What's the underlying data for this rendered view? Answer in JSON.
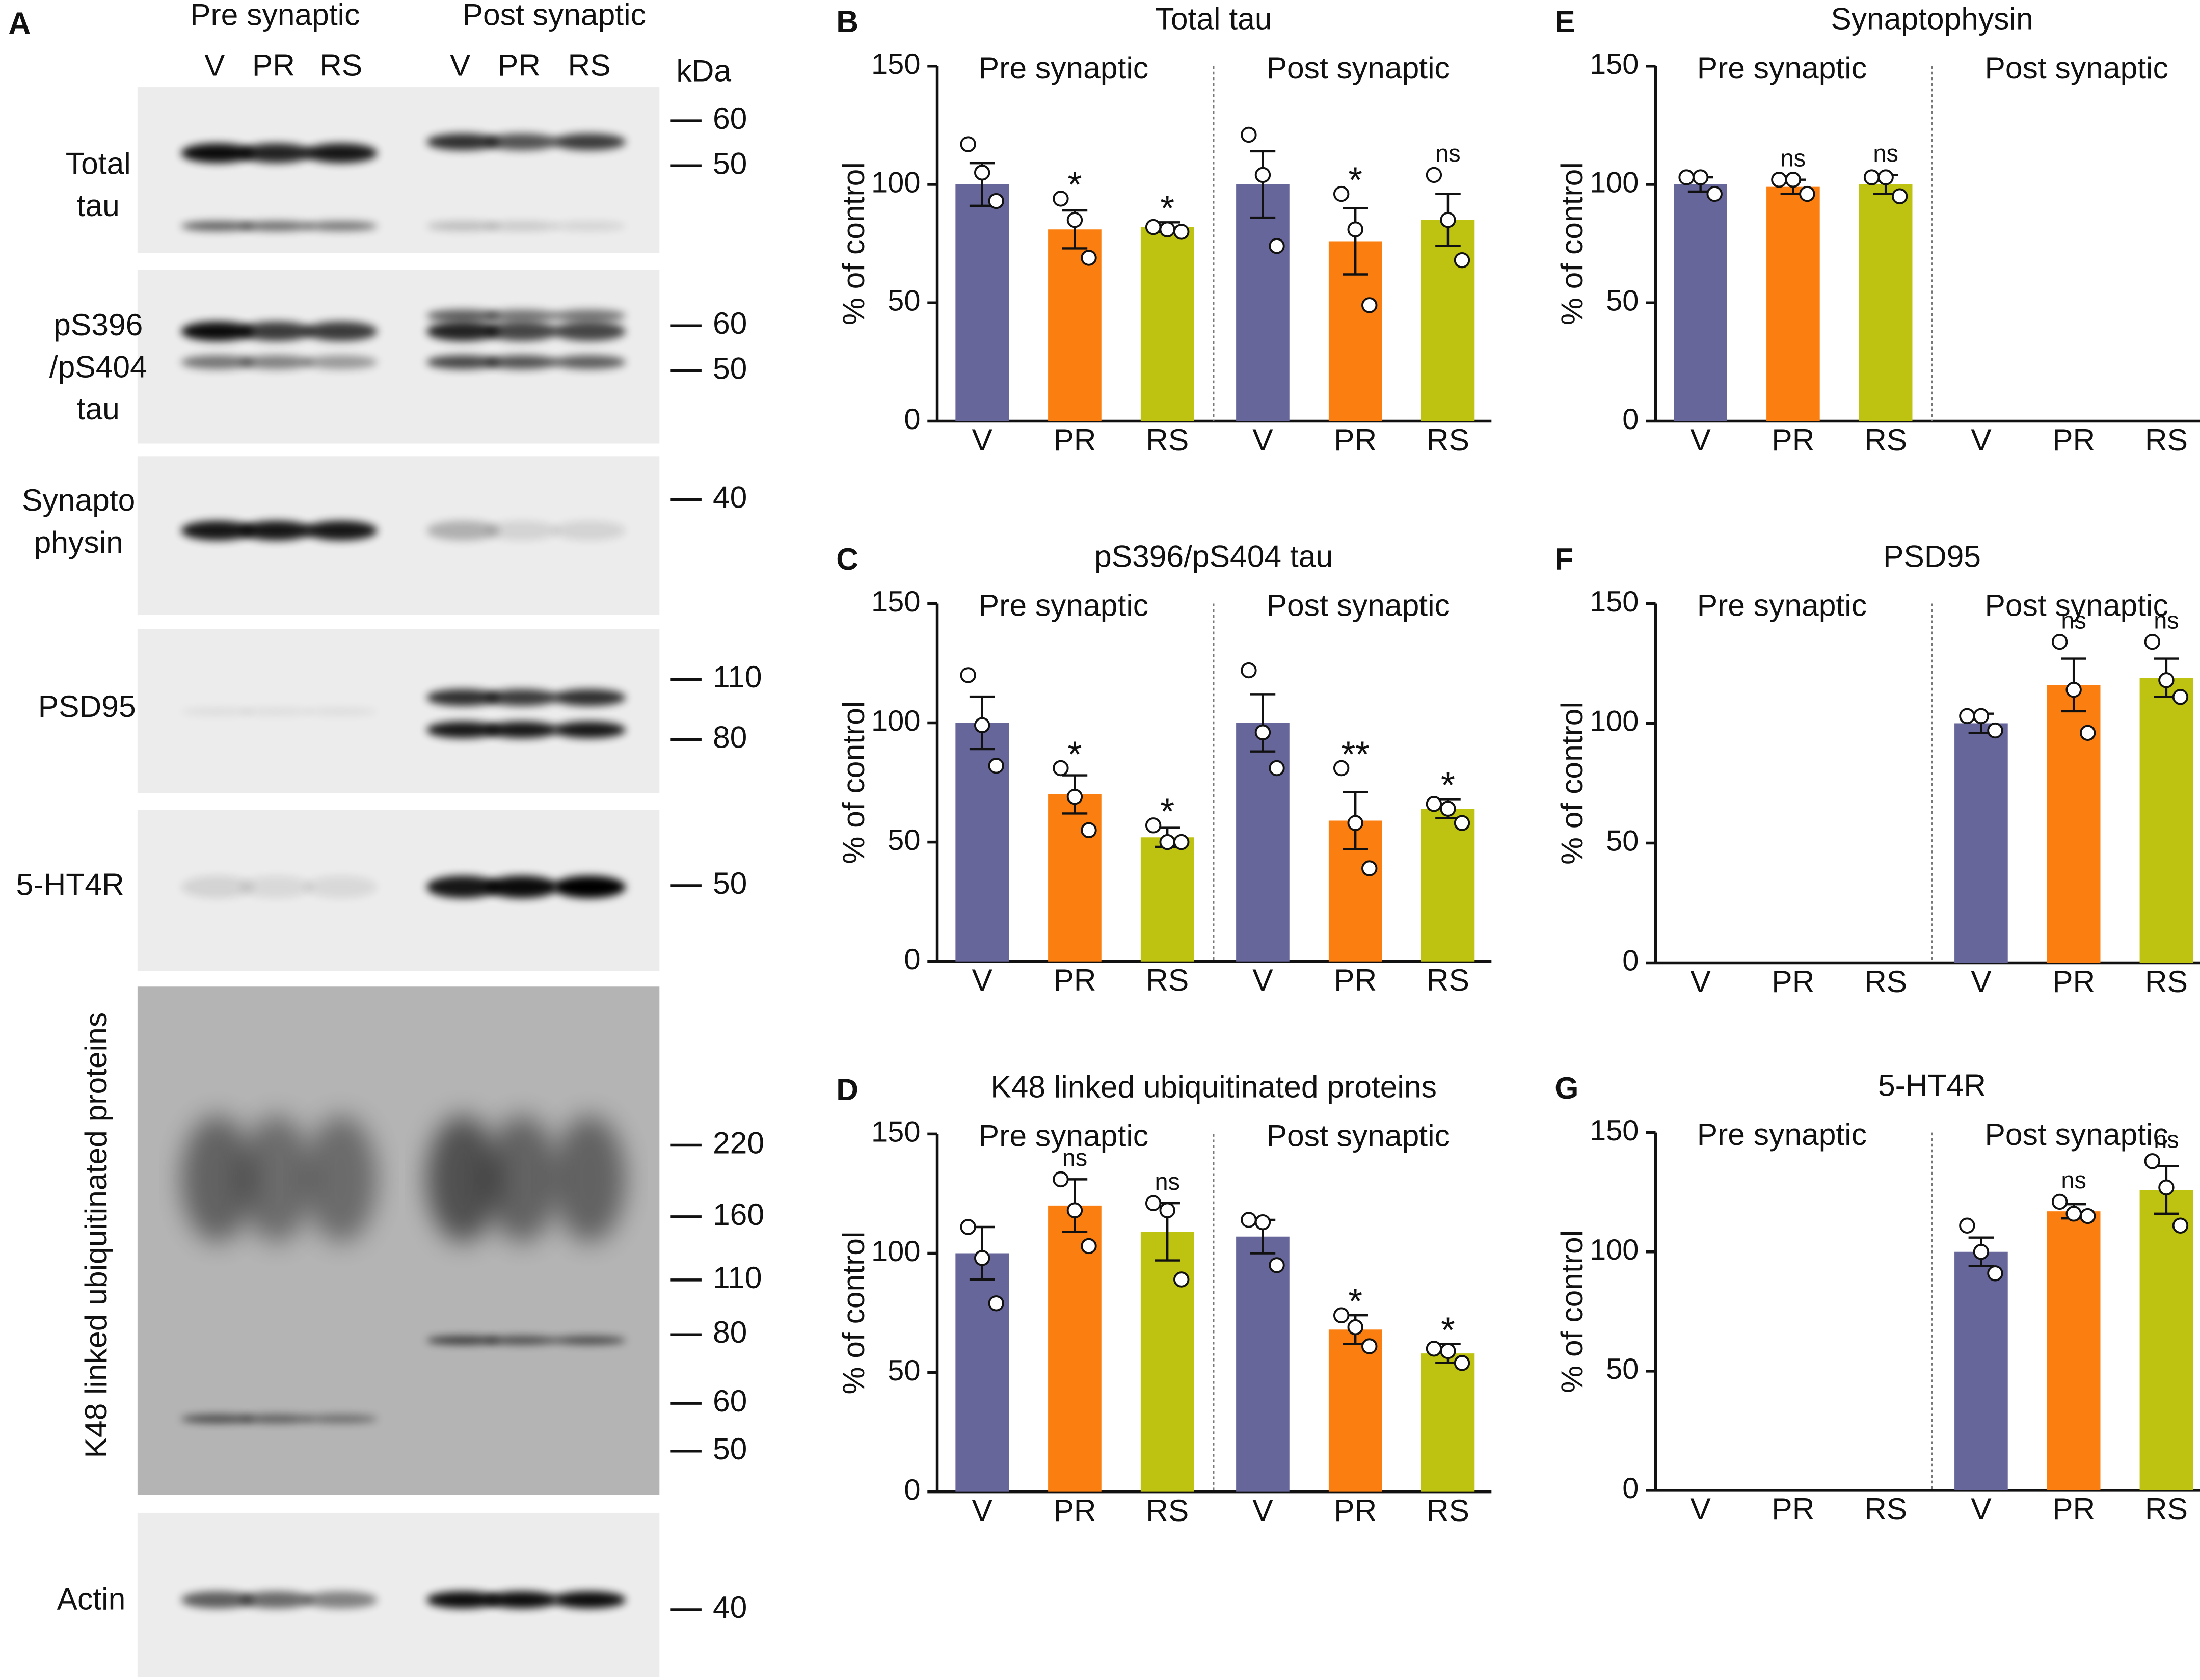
{
  "blot": {
    "panel": "A",
    "groups": [
      "Pre synaptic",
      "Post synaptic"
    ],
    "lanes": [
      "V",
      "PR",
      "RS",
      "V",
      "PR",
      "RS"
    ],
    "unit": "kDa",
    "rows": [
      {
        "label": [
          "Total",
          "tau"
        ],
        "markers": [
          60,
          50
        ]
      },
      {
        "label": [
          "pS396",
          "/pS404",
          "tau"
        ],
        "markers": [
          60,
          50
        ]
      },
      {
        "label": [
          "Synapto",
          "physin"
        ],
        "markers": [
          40
        ]
      },
      {
        "label": [
          "PSD95"
        ],
        "markers": [
          110,
          80
        ]
      },
      {
        "label": [
          "5-HT4R"
        ],
        "markers": [
          50
        ]
      },
      {
        "label": [
          "K48 linked ubiquitinated proteins"
        ],
        "markers": [
          220,
          160,
          110,
          80,
          60,
          50
        ]
      },
      {
        "label": [
          "Actin"
        ],
        "markers": [
          40
        ]
      }
    ]
  },
  "chart_data": [
    {
      "type": "bar",
      "panel": "B",
      "title": "Total tau",
      "ylabel": "% of control",
      "groups": [
        "Pre synaptic",
        "Post synaptic"
      ],
      "categories": [
        "V",
        "PR",
        "RS",
        "V",
        "PR",
        "RS"
      ],
      "colors": [
        "#67669b",
        "#fb7f10",
        "#bec211"
      ],
      "values": [
        100,
        81,
        82,
        100,
        76,
        85
      ],
      "errors": [
        9,
        8,
        2,
        14,
        14,
        11
      ],
      "points": [
        [
          117,
          105,
          93
        ],
        [
          94,
          85,
          69
        ],
        [
          82,
          81,
          80
        ],
        [
          121,
          104,
          74
        ],
        [
          96,
          81,
          49
        ],
        [
          104,
          85,
          68
        ]
      ],
      "annotations": [
        null,
        "*",
        "*",
        null,
        "*",
        "ns"
      ],
      "ylim": [
        0,
        150
      ],
      "yticks": [
        0,
        50,
        100,
        150
      ]
    },
    {
      "type": "bar",
      "panel": "C",
      "title": "pS396/pS404 tau",
      "ylabel": "% of control",
      "groups": [
        "Pre synaptic",
        "Post synaptic"
      ],
      "categories": [
        "V",
        "PR",
        "RS",
        "V",
        "PR",
        "RS"
      ],
      "colors": [
        "#67669b",
        "#fb7f10",
        "#bec211"
      ],
      "values": [
        100,
        70,
        52,
        100,
        59,
        64
      ],
      "errors": [
        11,
        8,
        4,
        12,
        12,
        4
      ],
      "points": [
        [
          120,
          99,
          82
        ],
        [
          81,
          69,
          55
        ],
        [
          57,
          50,
          50
        ],
        [
          122,
          96,
          81
        ],
        [
          81,
          58,
          39
        ],
        [
          66,
          64,
          58
        ]
      ],
      "annotations": [
        null,
        "*",
        "*",
        null,
        "**",
        "*"
      ],
      "ylim": [
        0,
        150
      ],
      "yticks": [
        0,
        50,
        100,
        150
      ]
    },
    {
      "type": "bar",
      "panel": "D",
      "title": "K48 linked ubiquitinated proteins",
      "ylabel": "% of control",
      "groups": [
        "Pre synaptic",
        "Post synaptic"
      ],
      "categories": [
        "V",
        "PR",
        "RS",
        "V",
        "PR",
        "RS"
      ],
      "colors": [
        "#67669b",
        "#fb7f10",
        "#bec211"
      ],
      "values": [
        100,
        120,
        109,
        107,
        68,
        58
      ],
      "errors": [
        11,
        11,
        12,
        7,
        6,
        4
      ],
      "points": [
        [
          111,
          98,
          79
        ],
        [
          131,
          118,
          103
        ],
        [
          121,
          118,
          89
        ],
        [
          114,
          113,
          95
        ],
        [
          74,
          69,
          61
        ],
        [
          60,
          59,
          54
        ]
      ],
      "annotations": [
        null,
        "ns",
        "ns",
        null,
        "*",
        "*"
      ],
      "ylim": [
        0,
        150
      ],
      "yticks": [
        0,
        50,
        100,
        150
      ]
    },
    {
      "type": "bar",
      "panel": "E",
      "title": "Synaptophysin",
      "ylabel": "% of control",
      "groups": [
        "Pre synaptic",
        "Post synaptic"
      ],
      "categories": [
        "V",
        "PR",
        "RS",
        "V",
        "PR",
        "RS"
      ],
      "colors": [
        "#67669b",
        "#fb7f10",
        "#bec211"
      ],
      "values": [
        100,
        99,
        100,
        null,
        null,
        null
      ],
      "errors": [
        3,
        3,
        4,
        null,
        null,
        null
      ],
      "points": [
        [
          103,
          103,
          96
        ],
        [
          102,
          102,
          96
        ],
        [
          103,
          103,
          95
        ],
        null,
        null,
        null
      ],
      "annotations": [
        null,
        "ns",
        "ns",
        null,
        null,
        null
      ],
      "ylim": [
        0,
        150
      ],
      "yticks": [
        0,
        50,
        100,
        150
      ]
    },
    {
      "type": "bar",
      "panel": "F",
      "title": "PSD95",
      "ylabel": "% of control",
      "groups": [
        "Pre synaptic",
        "Post synaptic"
      ],
      "categories": [
        "V",
        "PR",
        "RS",
        "V",
        "PR",
        "RS"
      ],
      "colors": [
        "#67669b",
        "#fb7f10",
        "#bec211"
      ],
      "values": [
        null,
        null,
        null,
        100,
        116,
        119
      ],
      "errors": [
        null,
        null,
        null,
        4,
        11,
        8
      ],
      "points": [
        null,
        null,
        null,
        [
          103,
          103,
          97
        ],
        [
          134,
          114,
          96
        ],
        [
          134,
          118,
          111
        ]
      ],
      "annotations": [
        null,
        null,
        null,
        null,
        "ns",
        "ns"
      ],
      "ylim": [
        0,
        150
      ],
      "yticks": [
        0,
        50,
        100,
        150
      ]
    },
    {
      "type": "bar",
      "panel": "G",
      "title": "5-HT4R",
      "ylabel": "% of control",
      "groups": [
        "Pre synaptic",
        "Post synaptic"
      ],
      "categories": [
        "V",
        "PR",
        "RS",
        "V",
        "PR",
        "RS"
      ],
      "colors": [
        "#67669b",
        "#fb7f10",
        "#bec211"
      ],
      "values": [
        null,
        null,
        null,
        100,
        117,
        126
      ],
      "errors": [
        null,
        null,
        null,
        6,
        3,
        10
      ],
      "points": [
        null,
        null,
        null,
        [
          111,
          100,
          91
        ],
        [
          121,
          116,
          115
        ],
        [
          138,
          127,
          111
        ]
      ],
      "annotations": [
        null,
        null,
        null,
        null,
        "ns",
        "ns"
      ],
      "ylim": [
        0,
        150
      ],
      "yticks": [
        0,
        50,
        100,
        150
      ]
    }
  ]
}
